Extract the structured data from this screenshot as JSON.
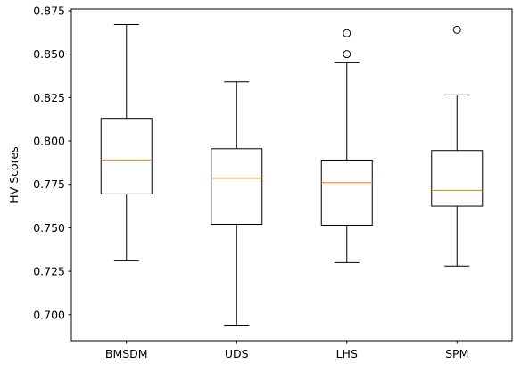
{
  "chart_data": {
    "type": "box",
    "title": "",
    "xlabel": "",
    "ylabel": "HV Scores",
    "ylim": [
      0.685,
      0.876
    ],
    "yticks": [
      "0.700",
      "0.725",
      "0.750",
      "0.775",
      "0.800",
      "0.825",
      "0.850",
      "0.875"
    ],
    "categories": [
      "BMSDM",
      "UDS",
      "LHS",
      "SPM"
    ],
    "boxes": [
      {
        "category": "BMSDM",
        "whisker_low": 0.731,
        "q1": 0.7695,
        "median": 0.789,
        "q3": 0.813,
        "whisker_high": 0.867,
        "outliers": []
      },
      {
        "category": "UDS",
        "whisker_low": 0.694,
        "q1": 0.752,
        "median": 0.7785,
        "q3": 0.7955,
        "whisker_high": 0.834,
        "outliers": []
      },
      {
        "category": "LHS",
        "whisker_low": 0.73,
        "q1": 0.7515,
        "median": 0.776,
        "q3": 0.789,
        "whisker_high": 0.845,
        "outliers": [
          0.85,
          0.862
        ]
      },
      {
        "category": "SPM",
        "whisker_low": 0.728,
        "q1": 0.7625,
        "median": 0.7715,
        "q3": 0.7945,
        "whisker_high": 0.8265,
        "outliers": [
          0.864
        ]
      }
    ],
    "grid": false,
    "colors": {
      "box": "#000000",
      "median": "#ff7f0e",
      "outlier": "#000000"
    }
  }
}
